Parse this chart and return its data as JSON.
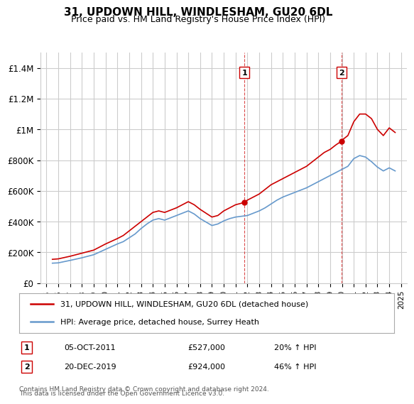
{
  "title": "31, UPDOWN HILL, WINDLESHAM, GU20 6DL",
  "subtitle": "Price paid vs. HM Land Registry's House Price Index (HPI)",
  "legend_line1": "31, UPDOWN HILL, WINDLESHAM, GU20 6DL (detached house)",
  "legend_line2": "HPI: Average price, detached house, Surrey Heath",
  "annotation1_label": "1",
  "annotation1_date": "05-OCT-2011",
  "annotation1_price": "£527,000",
  "annotation1_hpi": "20% ↑ HPI",
  "annotation1_year": 2011.75,
  "annotation1_value": 527000,
  "annotation2_label": "2",
  "annotation2_date": "20-DEC-2019",
  "annotation2_price": "£924,000",
  "annotation2_hpi": "46% ↑ HPI",
  "annotation2_year": 2019.97,
  "annotation2_value": 924000,
  "footer_line1": "Contains HM Land Registry data © Crown copyright and database right 2024.",
  "footer_line2": "This data is licensed under the Open Government Licence v3.0.",
  "red_color": "#cc0000",
  "blue_color": "#6699cc",
  "grid_color": "#cccccc",
  "background_color": "#ffffff",
  "ylim": [
    0,
    1500000
  ],
  "yticks": [
    0,
    200000,
    400000,
    600000,
    800000,
    1000000,
    1200000,
    1400000
  ],
  "ytick_labels": [
    "£0",
    "£200K",
    "£400K",
    "£600K",
    "£800K",
    "£1M",
    "£1.2M",
    "£1.4M"
  ],
  "red_years": [
    1995.5,
    1996.0,
    1997.0,
    1998.0,
    1999.0,
    2000.0,
    2001.0,
    2001.5,
    2002.0,
    2002.5,
    2003.0,
    2003.5,
    2004.0,
    2004.5,
    2005.0,
    2006.0,
    2007.0,
    2007.5,
    2008.0,
    2009.0,
    2009.5,
    2010.0,
    2010.5,
    2011.0,
    2011.5,
    2011.75,
    2012.0,
    2012.5,
    2013.0,
    2013.5,
    2014.0,
    2014.5,
    2015.0,
    2015.5,
    2016.0,
    2016.5,
    2017.0,
    2017.5,
    2018.0,
    2018.5,
    2019.0,
    2019.5,
    2019.97,
    2020.0,
    2020.5,
    2021.0,
    2021.5,
    2022.0,
    2022.5,
    2023.0,
    2023.5,
    2024.0,
    2024.5
  ],
  "red_values": [
    155000,
    158000,
    175000,
    195000,
    215000,
    255000,
    290000,
    310000,
    340000,
    370000,
    400000,
    430000,
    460000,
    470000,
    460000,
    490000,
    530000,
    510000,
    480000,
    430000,
    440000,
    470000,
    490000,
    510000,
    520000,
    527000,
    540000,
    560000,
    580000,
    610000,
    640000,
    660000,
    680000,
    700000,
    720000,
    740000,
    760000,
    790000,
    820000,
    850000,
    870000,
    900000,
    924000,
    930000,
    960000,
    1050000,
    1100000,
    1100000,
    1070000,
    1000000,
    960000,
    1010000,
    980000
  ],
  "blue_years": [
    1995.5,
    1996.0,
    1997.0,
    1998.0,
    1999.0,
    2000.0,
    2001.0,
    2001.5,
    2002.0,
    2002.5,
    2003.0,
    2003.5,
    2004.0,
    2004.5,
    2005.0,
    2006.0,
    2007.0,
    2007.5,
    2008.0,
    2009.0,
    2009.5,
    2010.0,
    2010.5,
    2011.0,
    2011.5,
    2012.0,
    2012.5,
    2013.0,
    2013.5,
    2014.0,
    2014.5,
    2015.0,
    2015.5,
    2016.0,
    2016.5,
    2017.0,
    2017.5,
    2018.0,
    2018.5,
    2019.0,
    2019.5,
    2020.0,
    2020.5,
    2021.0,
    2021.5,
    2022.0,
    2022.5,
    2023.0,
    2023.5,
    2024.0,
    2024.5
  ],
  "blue_values": [
    130000,
    132000,
    148000,
    165000,
    185000,
    220000,
    255000,
    270000,
    295000,
    320000,
    355000,
    385000,
    410000,
    420000,
    410000,
    440000,
    470000,
    450000,
    420000,
    375000,
    385000,
    405000,
    420000,
    430000,
    435000,
    440000,
    455000,
    470000,
    490000,
    515000,
    540000,
    560000,
    575000,
    590000,
    605000,
    620000,
    640000,
    660000,
    680000,
    700000,
    720000,
    740000,
    760000,
    810000,
    830000,
    820000,
    790000,
    755000,
    730000,
    750000,
    730000
  ],
  "dashed_line1_x": 2011.75,
  "dashed_line2_x": 2019.97,
  "xlim_left": 1994.5,
  "xlim_right": 2025.5,
  "xticks": [
    1995,
    1996,
    1997,
    1998,
    1999,
    2000,
    2001,
    2002,
    2003,
    2004,
    2005,
    2006,
    2007,
    2008,
    2009,
    2010,
    2011,
    2012,
    2013,
    2014,
    2015,
    2016,
    2017,
    2018,
    2019,
    2020,
    2021,
    2022,
    2023,
    2024,
    2025
  ]
}
